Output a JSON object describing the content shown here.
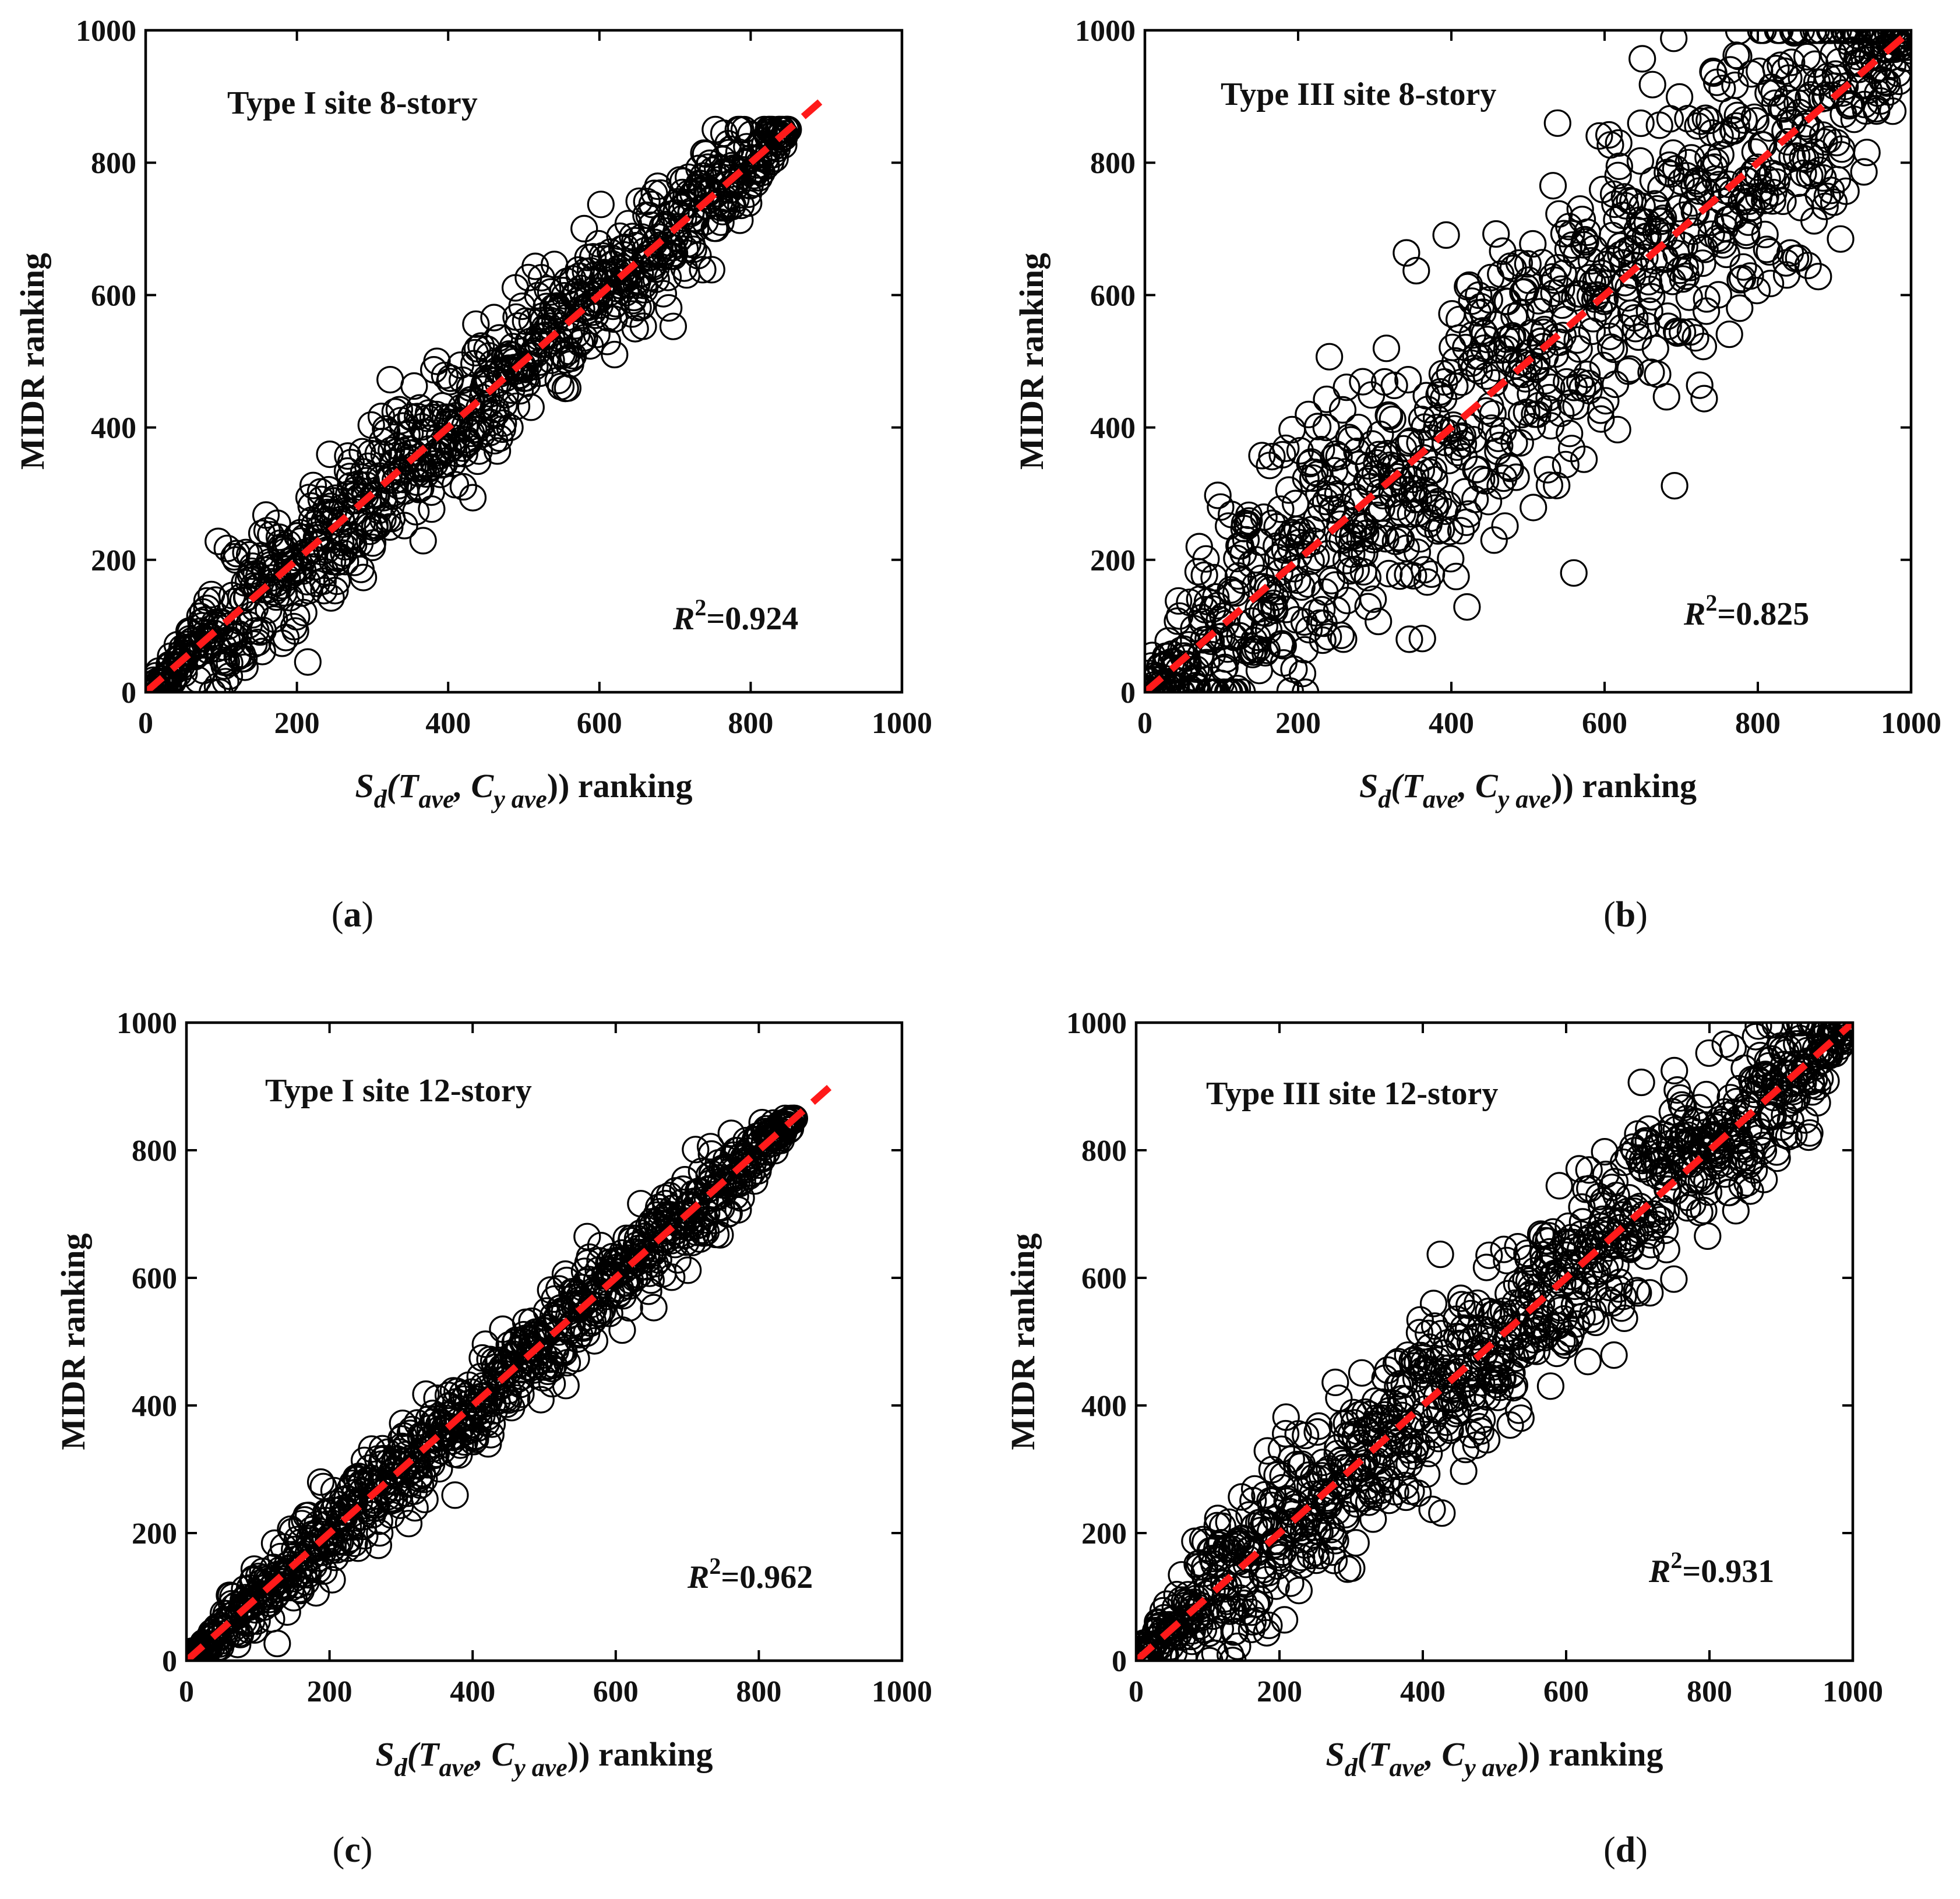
{
  "style": {
    "marker_color": "#000000",
    "fit_line_color": "#ff1a1a",
    "axis_color": "#000000"
  },
  "chart_data": [
    {
      "id": "a",
      "type": "scatter",
      "caption": "a",
      "title": "Type I site  8-story",
      "xlabel_parts": [
        "S",
        "d",
        "(T",
        "ave",
        ", C",
        "y ave",
        ")) ranking"
      ],
      "ylabel": "MIDR ranking",
      "xlim": [
        0,
        1000
      ],
      "ylim": [
        0,
        1000
      ],
      "xticks": [
        0,
        200,
        400,
        600,
        800,
        1000
      ],
      "yticks": [
        0,
        200,
        400,
        600,
        800,
        1000
      ],
      "fit_line": {
        "x": [
          0,
          900
        ],
        "y": [
          0,
          900
        ]
      },
      "r2_label": {
        "prefix": "R",
        "exp": "2",
        "value": "=0.924"
      },
      "point_count": 850,
      "point_range": 850,
      "spread": 50
    },
    {
      "id": "b",
      "type": "scatter",
      "caption": "b",
      "title": "Type III site  8-story",
      "xlabel_parts": [
        "S",
        "d",
        "(T",
        "ave",
        ", C",
        "y ave",
        ")) ranking"
      ],
      "ylabel": "MIDR ranking",
      "xlim": [
        0,
        1000
      ],
      "ylim": [
        0,
        1000
      ],
      "xticks": [
        0,
        200,
        400,
        600,
        800,
        1000
      ],
      "yticks": [
        0,
        200,
        400,
        600,
        800,
        1000
      ],
      "fit_line": {
        "x": [
          0,
          1000
        ],
        "y": [
          0,
          1000
        ]
      },
      "r2_label": {
        "prefix": "R",
        "exp": "2",
        "value": "=0.825"
      },
      "point_count": 1000,
      "point_range": 1000,
      "spread": 120
    },
    {
      "id": "c",
      "type": "scatter",
      "caption": "c",
      "title": "Type I site  12-story",
      "xlabel_parts": [
        "S",
        "d",
        "(T",
        "ave",
        ", C",
        "y ave",
        ")) ranking"
      ],
      "ylabel": "MIDR ranking",
      "xlim": [
        0,
        1000
      ],
      "ylim": [
        0,
        1000
      ],
      "xticks": [
        0,
        200,
        400,
        600,
        800,
        1000
      ],
      "yticks": [
        0,
        200,
        400,
        600,
        800,
        1000
      ],
      "fit_line": {
        "x": [
          0,
          900
        ],
        "y": [
          0,
          900
        ]
      },
      "r2_label": {
        "prefix": "R",
        "exp": "2",
        "value": "=0.962"
      },
      "point_count": 850,
      "point_range": 850,
      "spread": 35
    },
    {
      "id": "d",
      "type": "scatter",
      "caption": "d",
      "title": "Type III site  12-story",
      "xlabel_parts": [
        "S",
        "d",
        "(T",
        "ave",
        ", C",
        "y ave",
        ")) ranking"
      ],
      "ylabel": "MIDR ranking",
      "xlim": [
        0,
        1000
      ],
      "ylim": [
        0,
        1000
      ],
      "xticks": [
        0,
        200,
        400,
        600,
        800,
        1000
      ],
      "yticks": [
        0,
        200,
        400,
        600,
        800,
        1000
      ],
      "fit_line": {
        "x": [
          0,
          1000
        ],
        "y": [
          0,
          1000
        ]
      },
      "r2_label": {
        "prefix": "R",
        "exp": "2",
        "value": "=0.931"
      },
      "point_count": 1000,
      "point_range": 1000,
      "spread": 65
    }
  ]
}
